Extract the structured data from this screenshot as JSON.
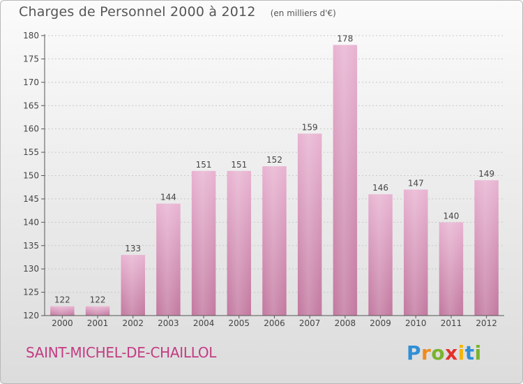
{
  "header": {
    "title": "Charges de Personnel 2000 à 2012",
    "subtitle": "(en milliers d'€)"
  },
  "footer": {
    "commune": "SAINT-MICHEL-DE-CHAILLOL",
    "logo": {
      "letters": [
        "P",
        "r",
        "o",
        "x",
        "i",
        "t",
        "i"
      ],
      "colors": [
        "#2f8fd6",
        "#f08a1d",
        "#7ab32e",
        "#e4312b",
        "#f5b400",
        "#2f8fd6",
        "#7ab32e"
      ]
    }
  },
  "colors": {
    "bar_light": "#e8b3d1",
    "bar_dark": "#c2789f",
    "accent": "#c33b82"
  },
  "chart_data": {
    "type": "bar",
    "title": "Charges de Personnel 2000 à 2012",
    "subtitle": "(en milliers d'€)",
    "categories": [
      "2000",
      "2001",
      "2002",
      "2003",
      "2004",
      "2005",
      "2006",
      "2007",
      "2008",
      "2009",
      "2010",
      "2011",
      "2012"
    ],
    "values": [
      122,
      122,
      133,
      144,
      151,
      151,
      152,
      159,
      178,
      146,
      147,
      140,
      149
    ],
    "ylim": [
      120,
      180
    ],
    "yticks": [
      120,
      125,
      130,
      135,
      140,
      145,
      150,
      155,
      160,
      165,
      170,
      175,
      180
    ],
    "grid": true,
    "legend": "none"
  }
}
